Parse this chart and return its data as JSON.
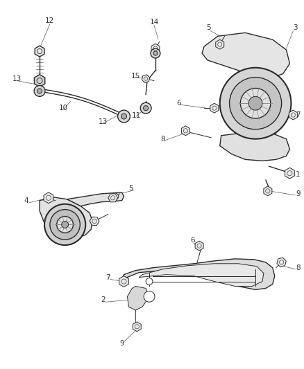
{
  "background_color": "#ffffff",
  "fig_width": 4.38,
  "fig_height": 5.33,
  "dpi": 100,
  "line_color": "#2a2a2a",
  "label_fontsize": 7.5,
  "label_color": "#333333"
}
